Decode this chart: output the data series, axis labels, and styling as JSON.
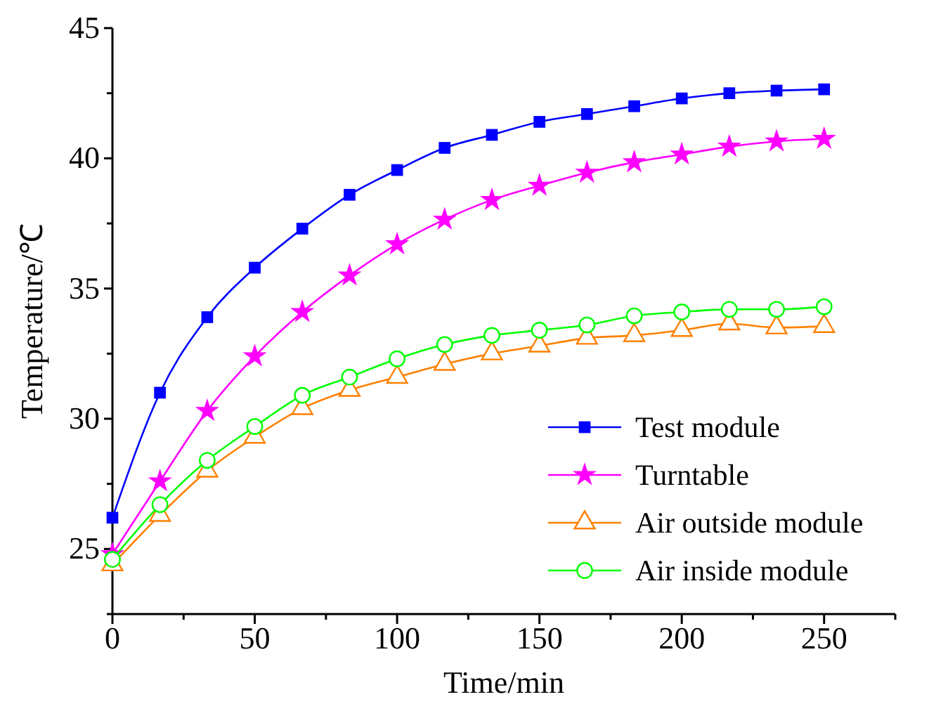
{
  "chart_data": {
    "type": "line",
    "xlabel": "Time/min",
    "ylabel": "Temperature/℃",
    "x": [
      0,
      16.7,
      33.3,
      50,
      66.7,
      83.3,
      100,
      116.7,
      133.3,
      150,
      166.7,
      183.3,
      200,
      216.7,
      233.3,
      250
    ],
    "series": [
      {
        "name": "Test module",
        "color": "#0000ff",
        "marker": "square",
        "values": [
          26.2,
          31.0,
          33.9,
          35.8,
          37.3,
          38.6,
          39.55,
          40.4,
          40.9,
          41.4,
          41.7,
          42.0,
          42.3,
          42.5,
          42.6,
          42.65
        ]
      },
      {
        "name": "Turntable",
        "color": "#ff00ff",
        "marker": "star",
        "values": [
          24.8,
          27.6,
          30.3,
          32.4,
          34.1,
          35.5,
          36.7,
          37.65,
          38.4,
          38.95,
          39.45,
          39.85,
          40.15,
          40.45,
          40.65,
          40.75
        ]
      },
      {
        "name": "Air outside module",
        "color": "#ff8000",
        "marker": "triangle",
        "values": [
          24.4,
          26.3,
          28.0,
          29.3,
          30.4,
          31.1,
          31.6,
          32.1,
          32.5,
          32.8,
          33.1,
          33.2,
          33.4,
          33.65,
          33.5,
          33.55
        ]
      },
      {
        "name": "Air inside module",
        "color": "#00ff00",
        "marker": "circle",
        "values": [
          24.6,
          26.7,
          28.4,
          29.7,
          30.9,
          31.6,
          32.3,
          32.85,
          33.2,
          33.4,
          33.6,
          33.95,
          34.1,
          34.2,
          34.2,
          34.3
        ]
      }
    ],
    "xlim": [
      0,
      275
    ],
    "xticks": [
      0,
      {
        "value": 25,
        "label": null
      },
      50,
      {
        "value": 75,
        "label": null
      },
      100,
      {
        "value": 125,
        "label": null
      },
      150,
      {
        "value": 175,
        "label": null
      },
      200,
      {
        "value": 225,
        "label": null
      },
      250,
      {
        "value": 275,
        "label": null
      }
    ],
    "ylim": [
      22.5,
      45
    ],
    "yticks": [
      {
        "value": 22.5,
        "label": null
      },
      25,
      {
        "value": 27.5,
        "label": null
      },
      30,
      {
        "value": 32.5,
        "label": null
      },
      35,
      {
        "value": 37.5,
        "label": null
      },
      40,
      {
        "value": 42.5,
        "label": null
      },
      45
    ],
    "legend": "bottom right",
    "grid": false,
    "line_style": "solid"
  }
}
